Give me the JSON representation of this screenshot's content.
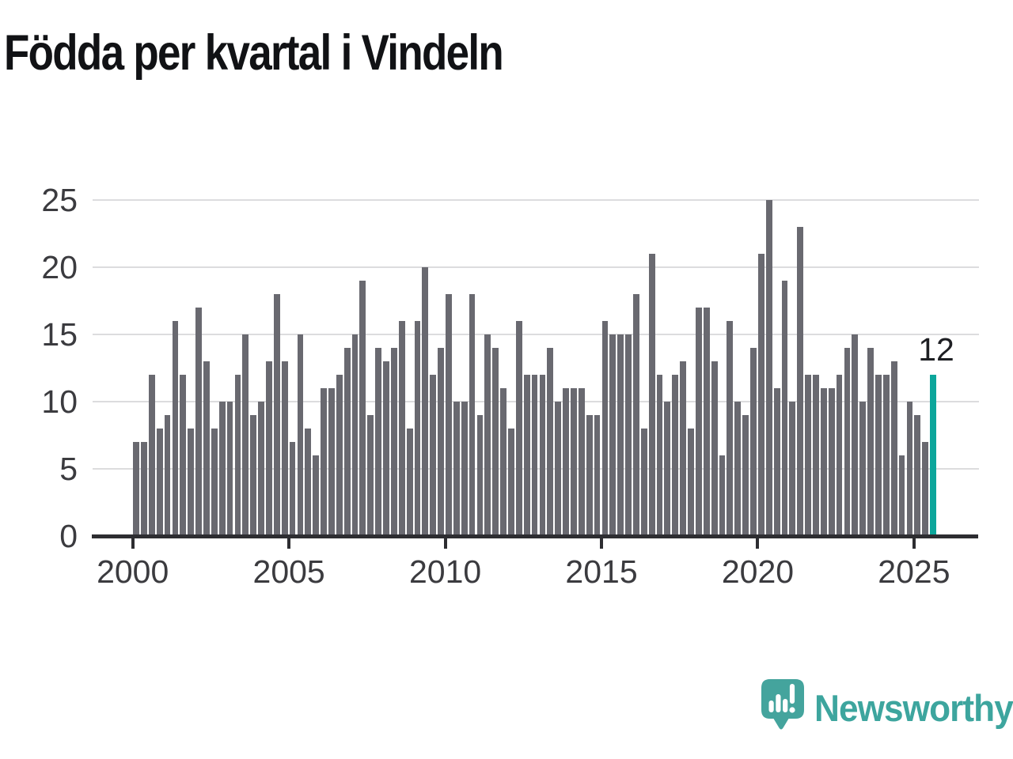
{
  "title": "Födda per kvartal i Vindeln",
  "annotation": {
    "label": "12"
  },
  "logo": {
    "text": "Newsworthy",
    "icon": "speech-bubble-bar-chart-icon",
    "color": "#3da59e"
  },
  "colors": {
    "bar": "#696970",
    "highlight": "#0ca69b",
    "gridline": "#dcdcde",
    "axis": "#2d2d31",
    "tick_label": "#3b3b3f",
    "title": "#111215",
    "background": "#ffffff"
  },
  "chart_data": {
    "type": "bar",
    "title": "Födda per kvartal i Vindeln",
    "xlabel": "",
    "ylabel": "",
    "ylim": [
      0,
      25
    ],
    "yticks": [
      0,
      5,
      10,
      15,
      20,
      25
    ],
    "xticks": [
      "2000",
      "2005",
      "2010",
      "2015",
      "2020",
      "2025"
    ],
    "grid": true,
    "legend_position": "none",
    "highlight_last_bar": true,
    "last_bar_value_label": "12",
    "x": [
      "2000 K1",
      "2000 K2",
      "2000 K3",
      "2000 K4",
      "2001 K1",
      "2001 K2",
      "2001 K3",
      "2001 K4",
      "2002 K1",
      "2002 K2",
      "2002 K3",
      "2002 K4",
      "2003 K1",
      "2003 K2",
      "2003 K3",
      "2003 K4",
      "2004 K1",
      "2004 K2",
      "2004 K3",
      "2004 K4",
      "2005 K1",
      "2005 K2",
      "2005 K3",
      "2005 K4",
      "2006 K1",
      "2006 K2",
      "2006 K3",
      "2006 K4",
      "2007 K1",
      "2007 K2",
      "2007 K3",
      "2007 K4",
      "2008 K1",
      "2008 K2",
      "2008 K3",
      "2008 K4",
      "2009 K1",
      "2009 K2",
      "2009 K3",
      "2009 K4",
      "2010 K1",
      "2010 K2",
      "2010 K3",
      "2010 K4",
      "2011 K1",
      "2011 K2",
      "2011 K3",
      "2011 K4",
      "2012 K1",
      "2012 K2",
      "2012 K3",
      "2012 K4",
      "2013 K1",
      "2013 K2",
      "2013 K3",
      "2013 K4",
      "2014 K1",
      "2014 K2",
      "2014 K3",
      "2014 K4",
      "2015 K1",
      "2015 K2",
      "2015 K3",
      "2015 K4",
      "2016 K1",
      "2016 K2",
      "2016 K3",
      "2016 K4",
      "2017 K1",
      "2017 K2",
      "2017 K3",
      "2017 K4",
      "2018 K1",
      "2018 K2",
      "2018 K3",
      "2018 K4",
      "2019 K1",
      "2019 K2",
      "2019 K3",
      "2019 K4",
      "2020 K1",
      "2020 K2",
      "2020 K3",
      "2020 K4",
      "2021 K1",
      "2021 K2",
      "2021 K3",
      "2021 K4",
      "2022 K1",
      "2022 K2",
      "2022 K3",
      "2022 K4",
      "2023 K1",
      "2023 K2",
      "2023 K3",
      "2023 K4",
      "2024 K1",
      "2024 K2",
      "2024 K3",
      "2024 K4",
      "2025 K1",
      "2025 K2",
      "2025 K3"
    ],
    "values": [
      7,
      7,
      12,
      8,
      9,
      16,
      12,
      8,
      17,
      13,
      8,
      10,
      10,
      12,
      15,
      9,
      10,
      13,
      18,
      13,
      7,
      15,
      8,
      6,
      11,
      11,
      12,
      14,
      15,
      19,
      9,
      14,
      13,
      14,
      16,
      8,
      16,
      20,
      12,
      14,
      18,
      10,
      10,
      18,
      9,
      15,
      14,
      11,
      8,
      16,
      12,
      12,
      12,
      14,
      10,
      11,
      11,
      11,
      9,
      9,
      16,
      15,
      15,
      15,
      18,
      8,
      21,
      12,
      10,
      12,
      13,
      8,
      17,
      17,
      13,
      6,
      16,
      10,
      9,
      14,
      21,
      25,
      11,
      19,
      10,
      23,
      12,
      12,
      11,
      11,
      12,
      14,
      15,
      10,
      14,
      12,
      12,
      13,
      6,
      10,
      9,
      7,
      12
    ]
  }
}
